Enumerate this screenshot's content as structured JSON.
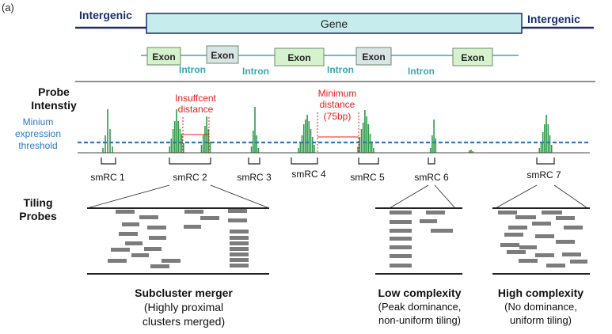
{
  "panel_label": "(a)",
  "gene_track": {
    "intergenic_left": "Intergenic",
    "intergenic_right": "Intergenic",
    "gene": "Gene",
    "exon": "Exon",
    "intron": "Intron"
  },
  "probe_intensity": {
    "title_line1": "Probe",
    "title_line2": "Intenstiy",
    "threshold_line1": "Minium",
    "threshold_line2": "expression",
    "threshold_line3": "threshold",
    "insufficient_line1": "Insuffcent",
    "insufficient_line2": "distance",
    "minimum_line1": "Minimum",
    "minimum_line2": "distance",
    "minimum_line3": "(75bp)"
  },
  "clusters": [
    "smRC 1",
    "smRC 2",
    "smRC 3",
    "smRC 4",
    "smRC 5",
    "smRC 6",
    "smRC 7"
  ],
  "tiling": {
    "title_line1": "Tiling",
    "title_line2": "Probes"
  },
  "captions": {
    "merger_title": "Subcluster merger",
    "merger_line1": "(Highly proximal",
    "merger_line2": "clusters merged)",
    "low_title": "Low complexity",
    "low_line1": "(Peak dominance,",
    "low_line2": "non-uniform tiling)",
    "high_title": "High complexity",
    "high_line1": "(No dominance,",
    "high_line2": "uniform tiling)"
  },
  "colors": {
    "navy": "#1a2e6e",
    "teal": "#3aa7b0",
    "gene_fill": "#c7ecee",
    "exon_fill": "#d5f2cd",
    "exon_grey_fill": "#d9e4e4",
    "peak_green": "#2e9a48",
    "threshold_blue": "#2f78c2",
    "annotation_red": "#e3201b",
    "probe_grey": "#7c7c7c"
  }
}
